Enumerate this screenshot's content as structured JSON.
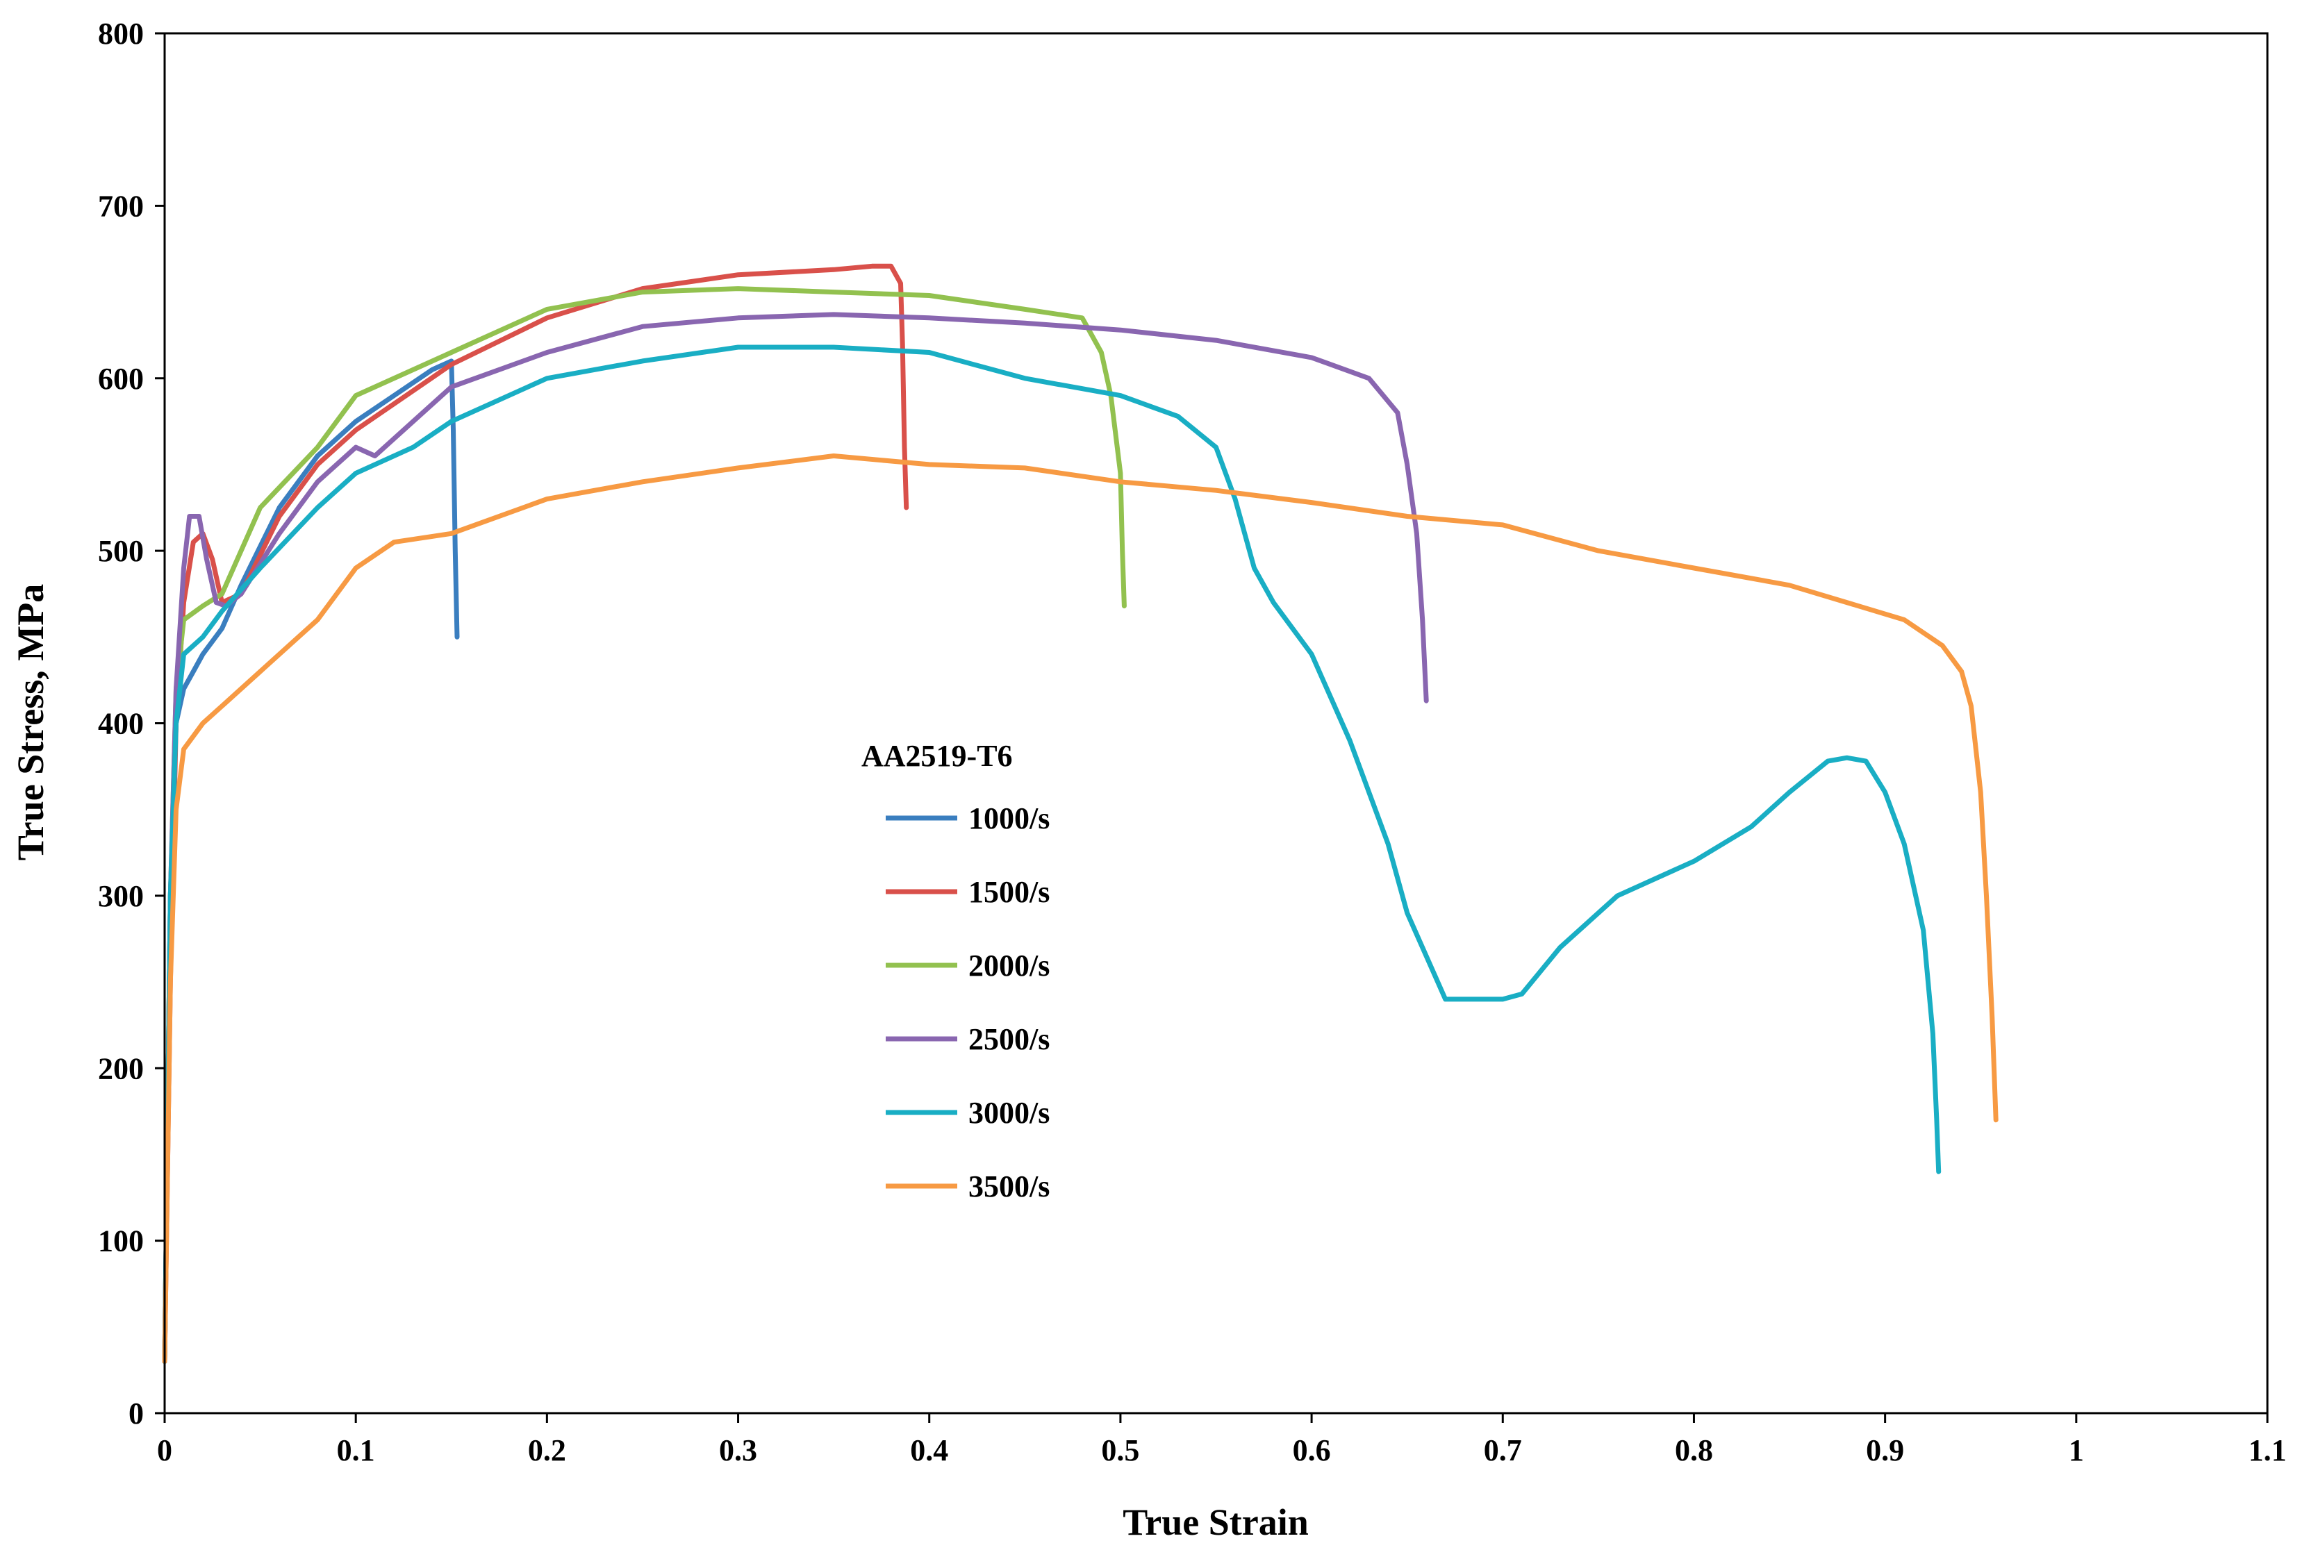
{
  "chart_data": {
    "type": "line",
    "title": "",
    "xlabel": "True Strain",
    "ylabel": "True Stress, MPa",
    "xlim": [
      0,
      1.1
    ],
    "ylim": [
      0,
      800
    ],
    "xticks": [
      0,
      0.1,
      0.2,
      0.3,
      0.4,
      0.5,
      0.6,
      0.7,
      0.8,
      0.9,
      1,
      1.1
    ],
    "xtick_labels": [
      "0",
      "0.1",
      "0.2",
      "0.3",
      "0.4",
      "0.5",
      "0.6",
      "0.7",
      "0.8",
      "0.9",
      "1",
      "1.1"
    ],
    "yticks": [
      0,
      100,
      200,
      300,
      400,
      500,
      600,
      700,
      800
    ],
    "ytick_labels": [
      "0",
      "100",
      "200",
      "300",
      "400",
      "500",
      "600",
      "700",
      "800"
    ],
    "grid": false,
    "legend": {
      "title": "AA2519-T6",
      "position": "center"
    },
    "series": [
      {
        "name": "1000/s",
        "color": "#3a7ebf",
        "x": [
          0,
          0.003,
          0.006,
          0.01,
          0.015,
          0.02,
          0.03,
          0.04,
          0.06,
          0.08,
          0.1,
          0.12,
          0.14,
          0.15,
          0.151,
          0.152,
          0.153
        ],
        "y": [
          30,
          300,
          400,
          420,
          430,
          440,
          455,
          480,
          525,
          555,
          575,
          590,
          605,
          610,
          570,
          500,
          450
        ]
      },
      {
        "name": "1500/s",
        "color": "#d9504a",
        "x": [
          0,
          0.003,
          0.006,
          0.01,
          0.015,
          0.02,
          0.025,
          0.03,
          0.04,
          0.06,
          0.08,
          0.1,
          0.15,
          0.2,
          0.25,
          0.3,
          0.35,
          0.37,
          0.38,
          0.385,
          0.386,
          0.387,
          0.388
        ],
        "y": [
          30,
          250,
          400,
          470,
          505,
          510,
          495,
          470,
          475,
          520,
          550,
          570,
          608,
          635,
          652,
          660,
          663,
          665,
          665,
          655,
          620,
          560,
          525
        ]
      },
      {
        "name": "2000/s",
        "color": "#92c14f",
        "x": [
          0,
          0.003,
          0.006,
          0.01,
          0.02,
          0.03,
          0.05,
          0.08,
          0.1,
          0.15,
          0.2,
          0.25,
          0.3,
          0.35,
          0.4,
          0.45,
          0.48,
          0.49,
          0.495,
          0.5,
          0.501,
          0.502
        ],
        "y": [
          30,
          300,
          420,
          460,
          468,
          475,
          525,
          560,
          590,
          615,
          640,
          650,
          652,
          650,
          648,
          640,
          635,
          615,
          590,
          545,
          500,
          468
        ]
      },
      {
        "name": "2500/s",
        "color": "#8966b0",
        "x": [
          0,
          0.003,
          0.006,
          0.01,
          0.013,
          0.018,
          0.022,
          0.027,
          0.032,
          0.04,
          0.06,
          0.08,
          0.1,
          0.11,
          0.15,
          0.2,
          0.25,
          0.3,
          0.35,
          0.4,
          0.45,
          0.5,
          0.55,
          0.6,
          0.63,
          0.645,
          0.65,
          0.655,
          0.658,
          0.66
        ],
        "y": [
          30,
          300,
          420,
          490,
          520,
          520,
          495,
          470,
          468,
          475,
          510,
          540,
          560,
          555,
          595,
          615,
          630,
          635,
          637,
          635,
          632,
          628,
          622,
          612,
          600,
          580,
          550,
          510,
          460,
          413
        ]
      },
      {
        "name": "3000/s",
        "color": "#19aec4",
        "x": [
          0,
          0.003,
          0.006,
          0.01,
          0.02,
          0.03,
          0.05,
          0.08,
          0.1,
          0.13,
          0.15,
          0.2,
          0.25,
          0.3,
          0.35,
          0.4,
          0.45,
          0.5,
          0.53,
          0.55,
          0.56,
          0.57,
          0.58,
          0.6,
          0.62,
          0.64,
          0.65,
          0.67,
          0.7,
          0.71,
          0.73,
          0.76,
          0.8,
          0.83,
          0.85,
          0.87,
          0.88,
          0.89,
          0.9,
          0.91,
          0.92,
          0.925,
          0.927,
          0.928
        ],
        "y": [
          30,
          300,
          400,
          440,
          450,
          465,
          490,
          525,
          545,
          560,
          575,
          600,
          610,
          618,
          618,
          615,
          600,
          590,
          578,
          560,
          530,
          490,
          470,
          440,
          390,
          330,
          290,
          240,
          240,
          243,
          270,
          300,
          320,
          340,
          360,
          378,
          380,
          378,
          360,
          330,
          280,
          220,
          170,
          140
        ]
      },
      {
        "name": "3500/s",
        "color": "#f79a43",
        "x": [
          0,
          0.003,
          0.006,
          0.01,
          0.02,
          0.03,
          0.05,
          0.08,
          0.1,
          0.12,
          0.15,
          0.2,
          0.25,
          0.3,
          0.35,
          0.4,
          0.45,
          0.5,
          0.55,
          0.6,
          0.65,
          0.7,
          0.75,
          0.8,
          0.85,
          0.88,
          0.91,
          0.93,
          0.94,
          0.945,
          0.95,
          0.953,
          0.956,
          0.958
        ],
        "y": [
          30,
          250,
          350,
          385,
          400,
          410,
          430,
          460,
          490,
          505,
          510,
          530,
          540,
          548,
          555,
          550,
          548,
          540,
          535,
          528,
          520,
          515,
          500,
          490,
          480,
          470,
          460,
          445,
          430,
          410,
          360,
          300,
          230,
          170
        ]
      }
    ]
  }
}
